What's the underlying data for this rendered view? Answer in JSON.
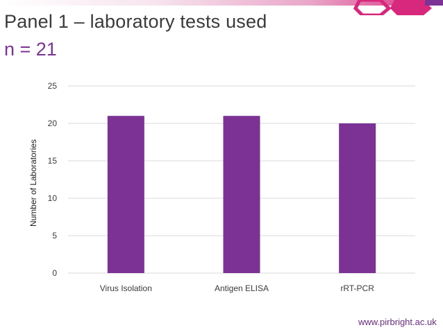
{
  "slide": {
    "title": "Panel 1 – laboratory tests used",
    "subtitle": "n = 21",
    "website": "www.pirbright.ac.uk"
  },
  "colors": {
    "bar": "#7b3294",
    "accent_pink": "#d8287e",
    "accent_magenta": "#b0209a",
    "text": "#3a3a3a",
    "grid": "#d9d9d9"
  },
  "chart_data": {
    "type": "bar",
    "categories": [
      "Virus Isolation",
      "Antigen ELISA",
      "rRT-PCR"
    ],
    "values": [
      21,
      21,
      20
    ],
    "ylabel": "Number of Laboratories",
    "xlabel": "",
    "ylim": [
      0,
      25
    ],
    "yticks": [
      0,
      5,
      10,
      15,
      20,
      25
    ],
    "grid": true,
    "legend": "none"
  }
}
